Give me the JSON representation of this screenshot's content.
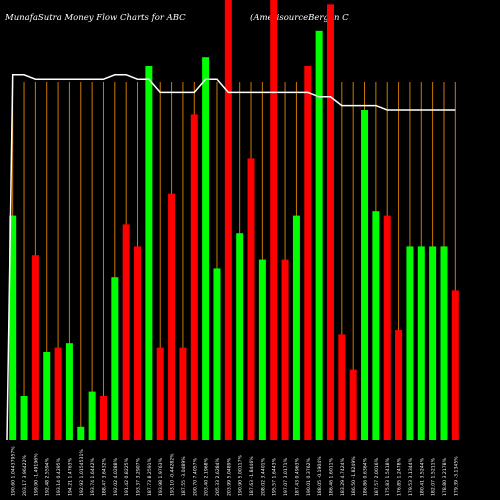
{
  "chart_data": {
    "type": "bar",
    "title_left": "MunafaSutra  Money Flow  Charts for ABC",
    "title_right": "(AmerisourceBergen  C",
    "grid": "vertical orange lines",
    "colors": {
      "up": "#00ff00",
      "down": "#ff0000",
      "line": "#ffffff",
      "grid": "#cc7a00",
      "background": "#000000"
    },
    "categories": [
      "190.60 1.04437957%",
      "203.17 3.96422%",
      "199.90 -1.49196%",
      "192.48 2.5594%",
      "193.14 0.4295%",
      "194.21 1.4763%",
      "192.92 1.0154531%",
      "193.74 1.6442%",
      "188.47 3.6432%",
      "192.02 4.0288%",
      "191.42 0.8225%",
      "193.37 3.2907%",
      "187.73 8.2591%",
      "193.98 1.9763%",
      "193.10 -0.44282%",
      "187.55 -3.0489%",
      "200.70 7.4057%",
      "203.40 2.1968%",
      "205.33 2.6284%",
      "203.99 5.0489%",
      "190.90 5.00117%",
      "187.63 -1.8446%",
      "208.02 3.4401%",
      "195.57 1.6443%",
      "197.07 3.0171%",
      "187.43 0.4963%",
      "190.01 0.3762%",
      "188.05 -0.1904%",
      "186.46 1.6011%",
      "183.29 4.7424%",
      "186.50 -1.8249%",
      "186.86 0.6364%",
      "187.57 2.0016%",
      "175.83 1.5418%",
      "176.85 1.2478%",
      "179.53 3.1344%",
      "180.41 3.5244%",
      "182.07 1.5211%",
      "178.80 3.2178%",
      "179.39 -3.1345%"
    ],
    "series": [
      {
        "direction": [
          "up",
          "up",
          "down",
          "up",
          "down",
          "up",
          "up",
          "up",
          "down",
          "up",
          "down",
          "down",
          "up",
          "down",
          "down",
          "down",
          "down",
          "up",
          "up",
          "down",
          "up",
          "down",
          "up",
          "down",
          "down",
          "up",
          "down",
          "up",
          "down",
          "down",
          "down",
          "up",
          "up",
          "down",
          "down",
          "up",
          "up",
          "up",
          "up",
          "down"
        ],
        "values": [
          0.51,
          0.1,
          0.42,
          0.2,
          0.21,
          0.22,
          0.03,
          0.11,
          0.1,
          0.37,
          0.49,
          0.44,
          0.85,
          0.21,
          0.56,
          0.21,
          0.74,
          0.87,
          0.39,
          1.0,
          0.47,
          0.64,
          0.41,
          1.0,
          0.41,
          0.51,
          0.85,
          0.93,
          0.99,
          0.24,
          0.16,
          0.75,
          0.52,
          0.51,
          0.25,
          0.44,
          0.44,
          0.44,
          0.44,
          0.34
        ]
      },
      {
        "name": "price",
        "values": [
          0.83,
          0.83,
          0.82,
          0.82,
          0.82,
          0.82,
          0.82,
          0.82,
          0.82,
          0.83,
          0.83,
          0.82,
          0.82,
          0.79,
          0.79,
          0.79,
          0.79,
          0.82,
          0.82,
          0.79,
          0.79,
          0.79,
          0.79,
          0.79,
          0.79,
          0.79,
          0.79,
          0.78,
          0.78,
          0.76,
          0.76,
          0.76,
          0.76,
          0.75,
          0.75,
          0.75,
          0.75,
          0.75,
          0.75,
          0.75
        ]
      }
    ]
  }
}
